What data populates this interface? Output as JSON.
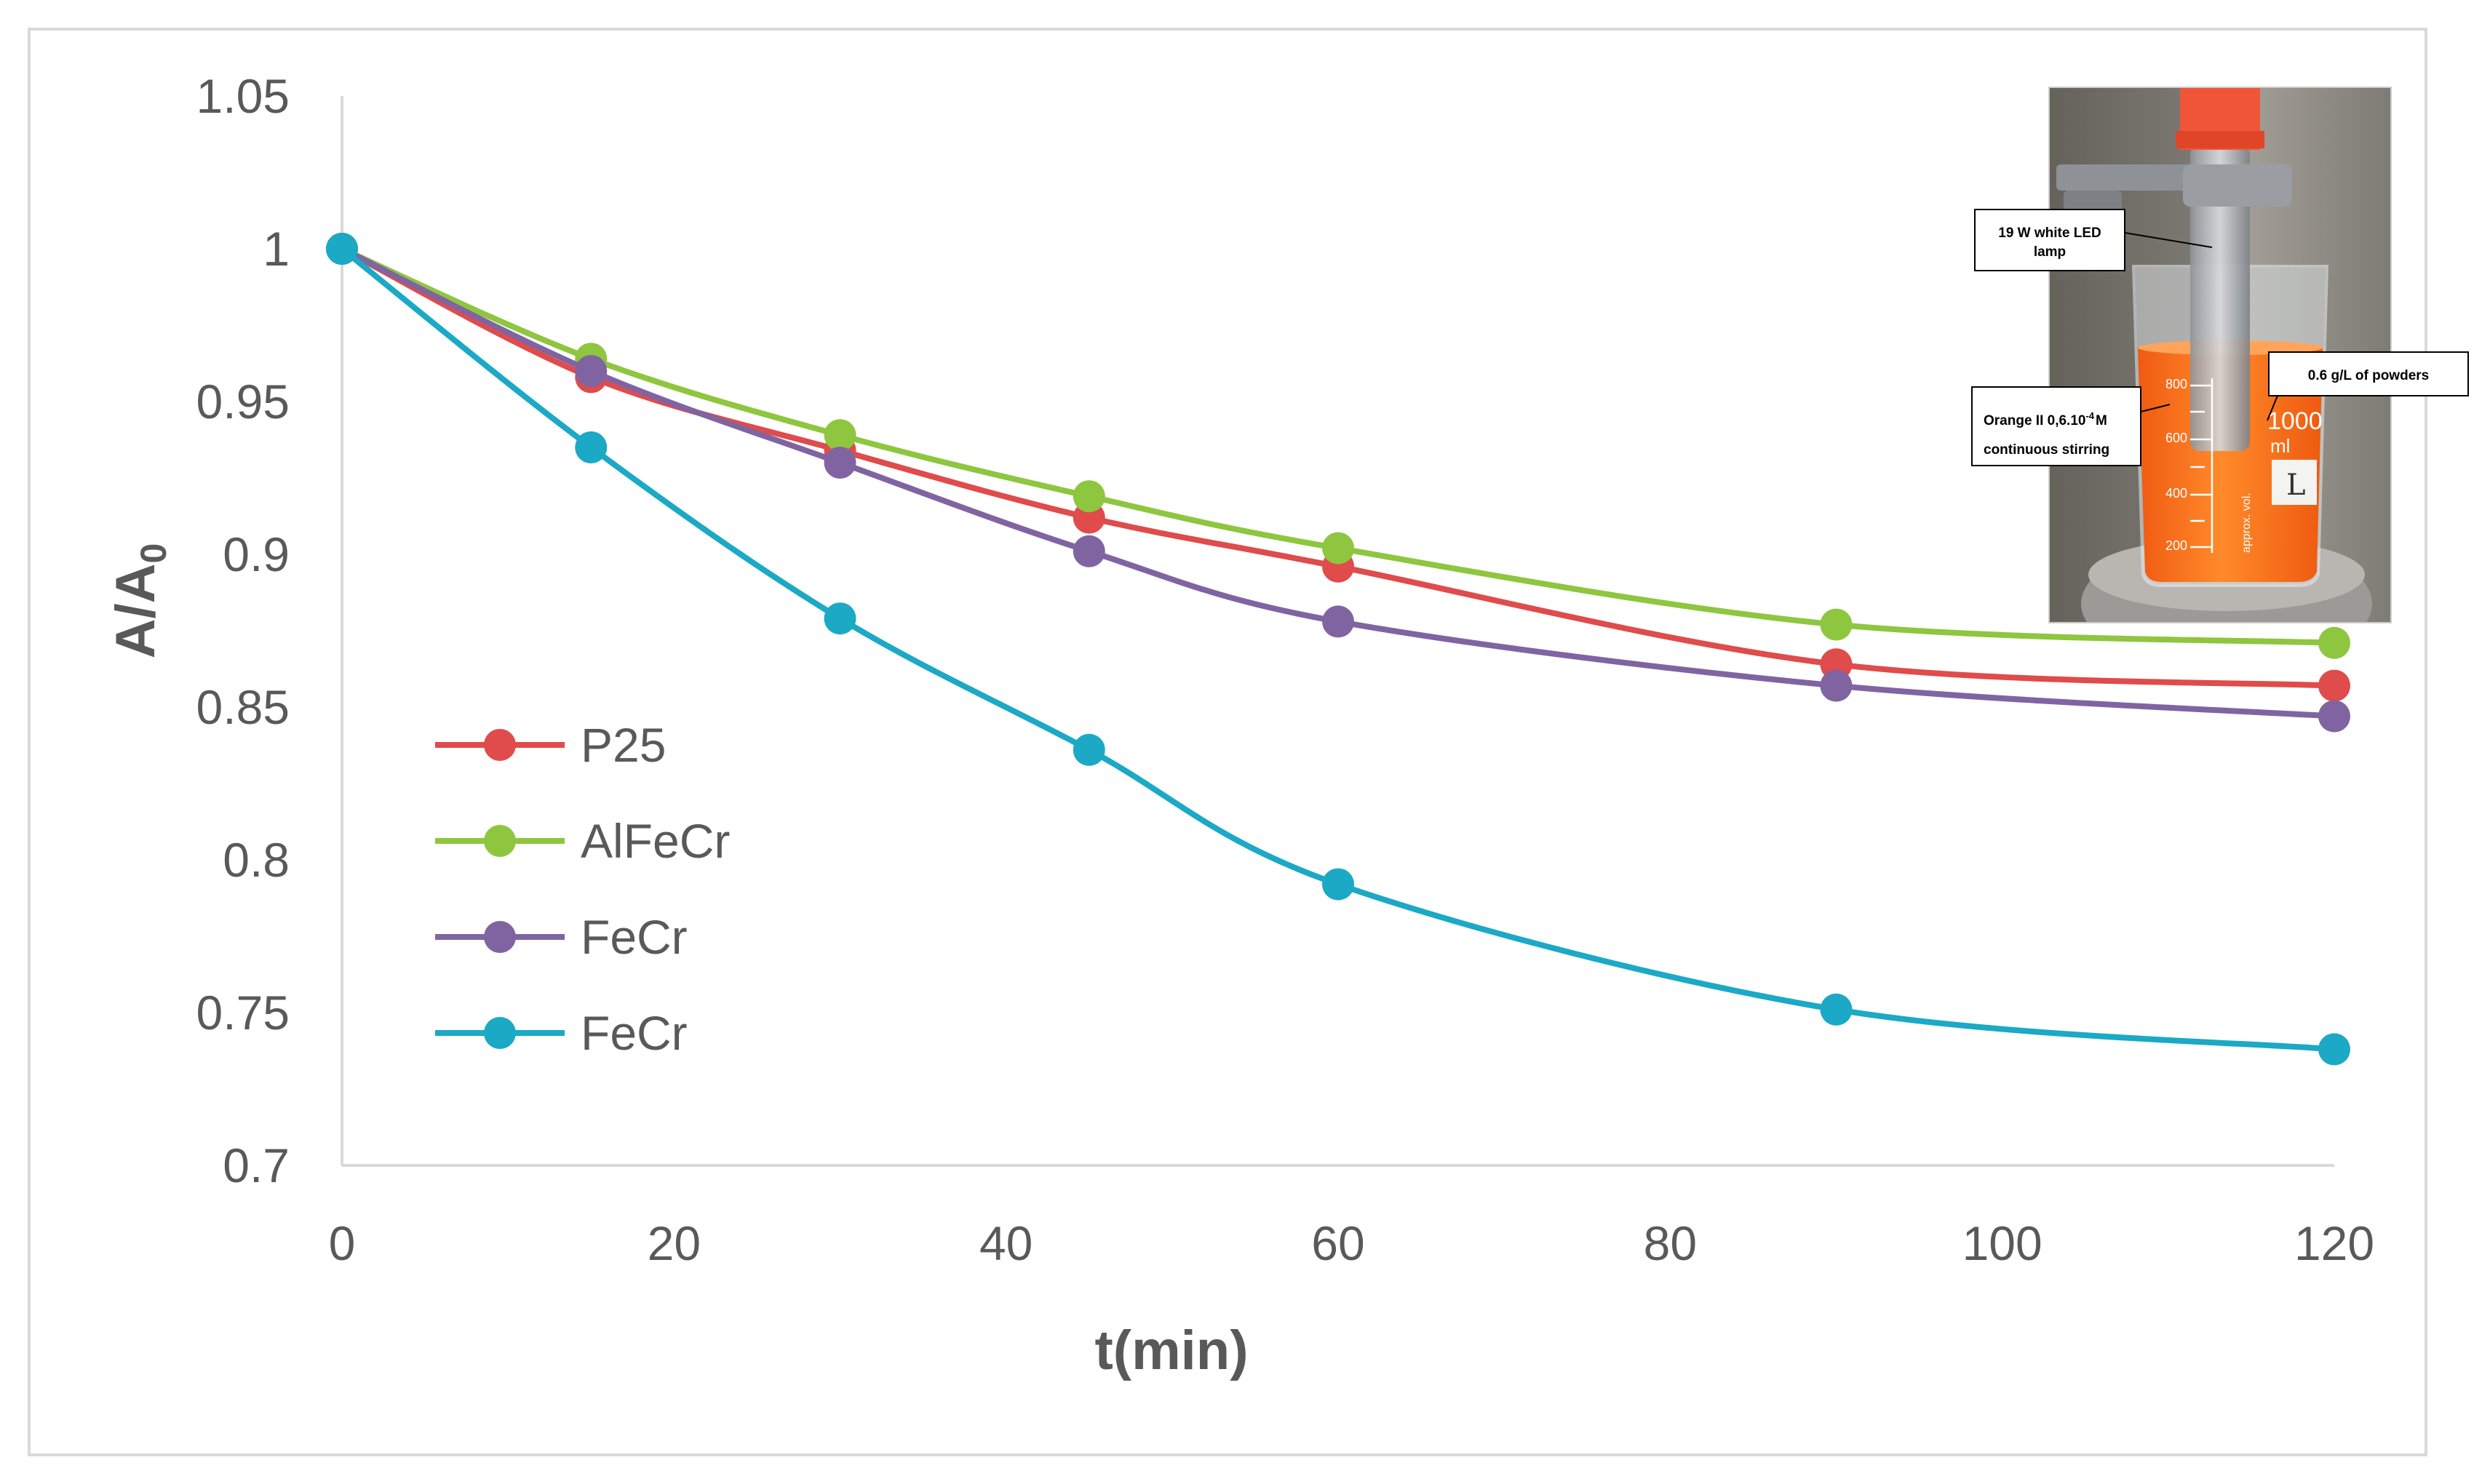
{
  "chart_data": {
    "type": "line",
    "title": "",
    "xlabel": "t(min)",
    "ylabel_main": "A/A",
    "ylabel_sub": "0",
    "xlim": [
      0,
      120
    ],
    "ylim": [
      0.7,
      1.05
    ],
    "x_ticks": [
      0,
      20,
      40,
      60,
      80,
      100,
      120
    ],
    "y_ticks": [
      {
        "value": 0.7,
        "label": "0.7"
      },
      {
        "value": 0.75,
        "label": "0.75"
      },
      {
        "value": 0.8,
        "label": "0.8"
      },
      {
        "value": 0.85,
        "label": "0.85"
      },
      {
        "value": 0.9,
        "label": "0.9"
      },
      {
        "value": 0.95,
        "label": "0.95"
      },
      {
        "value": 1.0,
        "label": "1"
      },
      {
        "value": 1.05,
        "label": "1.05"
      }
    ],
    "grid": false,
    "legend_position": "left",
    "x": [
      0,
      15,
      30,
      45,
      60,
      90,
      120
    ],
    "series": [
      {
        "name": "P25",
        "color": "#e04b4b",
        "values": [
          1.0,
          0.958,
          0.934,
          0.912,
          0.896,
          0.864,
          0.857
        ]
      },
      {
        "name": "AlFeCr",
        "color": "#8ec63f",
        "values": [
          1.0,
          0.964,
          0.939,
          0.919,
          0.902,
          0.877,
          0.871
        ]
      },
      {
        "name": "FeCr",
        "color": "#8064a2",
        "values": [
          1.0,
          0.96,
          0.93,
          0.901,
          0.878,
          0.857,
          0.847
        ]
      },
      {
        "name": "FeCr",
        "color": "#1ba9c6",
        "values": [
          1.0,
          0.935,
          0.879,
          0.836,
          0.792,
          0.751,
          0.738
        ]
      }
    ]
  },
  "inset_photo": {
    "labels": {
      "lamp_line1": "19 W white LED",
      "lamp_line2": "lamp",
      "powders": "0.6 g/L of powders",
      "orange_line1": "Orange II 0,6.10",
      "orange_exp": "-4",
      "orange_unit": "M",
      "orange_line2": "continuous stirring"
    },
    "beaker_text": {
      "volume": "1000",
      "unit": "ml",
      "mark_800": "800",
      "mark_600": "600",
      "mark_400": "400",
      "mark_200": "200",
      "approx": "approx. vol.",
      "handwritten": "L"
    }
  }
}
